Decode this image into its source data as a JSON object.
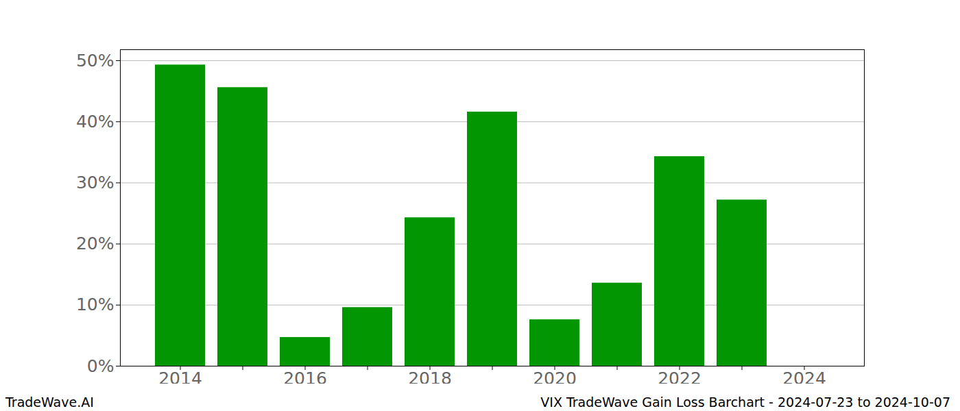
{
  "chart_data": {
    "type": "bar",
    "title": "VIX TradeWave Gain Loss Barchart - 2024-07-23 to 2024-10-07",
    "caption": "TradeWave.AI",
    "categories": [
      "2014",
      null,
      "2016",
      null,
      "2018",
      null,
      "2020",
      null,
      "2022",
      null,
      "2024"
    ],
    "values": [
      49.3,
      45.6,
      4.7,
      9.6,
      24.3,
      41.6,
      7.6,
      13.6,
      34.3,
      27.2,
      null
    ],
    "color": "#029702",
    "ylim": [
      0,
      51.8
    ],
    "yticks": [
      {
        "value": 0,
        "label": "0%"
      },
      {
        "value": 10,
        "label": "10%"
      },
      {
        "value": 20,
        "label": "20%"
      },
      {
        "value": 30,
        "label": "30%"
      },
      {
        "value": 40,
        "label": "40%"
      },
      {
        "value": 50,
        "label": "50%"
      }
    ],
    "grid": true
  }
}
